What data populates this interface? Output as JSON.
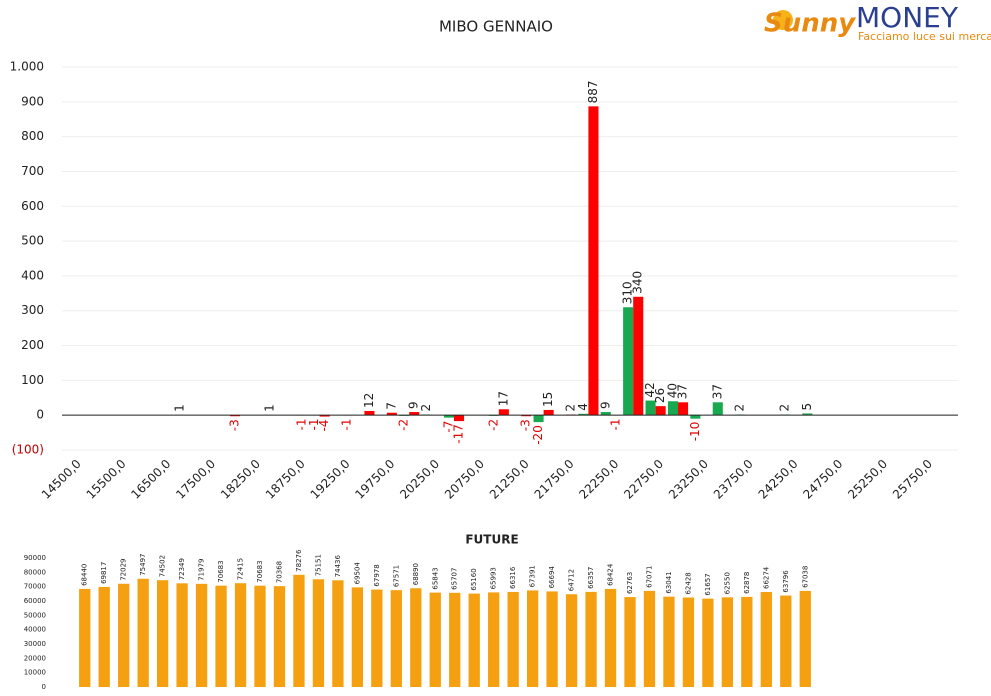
{
  "logo": {
    "name_a": "Sunny",
    "name_b": "MONEY",
    "tagline": "Facciamo luce sui mercati"
  },
  "chart_data": [
    {
      "type": "bar",
      "title": "MIBO GENNAIO",
      "categories": [
        "14500,0",
        null,
        "15500,0",
        null,
        "16500,0",
        null,
        "17500,0",
        null,
        "18250,0",
        null,
        "18750,0",
        null,
        "19250,0",
        null,
        "19750,0",
        null,
        "20250,0",
        null,
        "20750,0",
        null,
        "21250,0",
        null,
        "21750,0",
        null,
        "22250,0",
        null,
        "22750,0",
        null,
        "23250,0",
        null,
        "23750,0",
        null,
        "24250,0",
        null,
        "24750,0",
        null,
        "25250,0",
        null,
        "25750,0",
        null
      ],
      "series": [
        {
          "color": "#18a84f",
          "values": [
            null,
            null,
            null,
            null,
            null,
            1,
            null,
            null,
            null,
            1,
            null,
            -1,
            null,
            null,
            null,
            -2,
            2,
            -7,
            null,
            -2,
            null,
            -20,
            null,
            4,
            9,
            310,
            42,
            40,
            -10,
            37,
            2,
            null,
            2,
            5,
            null,
            null,
            null,
            null,
            null,
            null
          ]
        },
        {
          "color": "#ff0000",
          "values": [
            null,
            null,
            null,
            null,
            null,
            null,
            null,
            -3,
            null,
            null,
            -1,
            -4,
            -1,
            12,
            7,
            9,
            null,
            -17,
            null,
            17,
            -3,
            15,
            2,
            887,
            -1,
            340,
            26,
            37,
            null,
            null,
            null,
            null,
            null,
            null,
            null,
            null,
            null,
            null,
            null,
            null
          ]
        }
      ],
      "ylim": [
        -100,
        1000
      ],
      "yticks": [
        {
          "value": -100,
          "label": "(100)"
        },
        0,
        100,
        200,
        300,
        400,
        500,
        600,
        700,
        800,
        900,
        {
          "value": 1000,
          "label": "1.000"
        }
      ],
      "grid": true
    },
    {
      "type": "bar",
      "title": "FUTURE",
      "values": [
        68440,
        69817,
        72029,
        75497,
        74502,
        72349,
        71979,
        70683,
        72415,
        70683,
        70368,
        78276,
        75151,
        74436,
        69504,
        67978,
        67571,
        68890,
        65843,
        65707,
        65160,
        65993,
        66316,
        67391,
        66694,
        64712,
        66357,
        68424,
        62763,
        67071,
        63041,
        62428,
        61657,
        62550,
        62878,
        66274,
        63796,
        67038
      ],
      "color": "#f5a011",
      "ylim": [
        0,
        90000
      ],
      "yticks": [
        0,
        10000,
        20000,
        30000,
        40000,
        50000,
        60000,
        70000,
        80000,
        90000
      ],
      "grid": false
    }
  ]
}
